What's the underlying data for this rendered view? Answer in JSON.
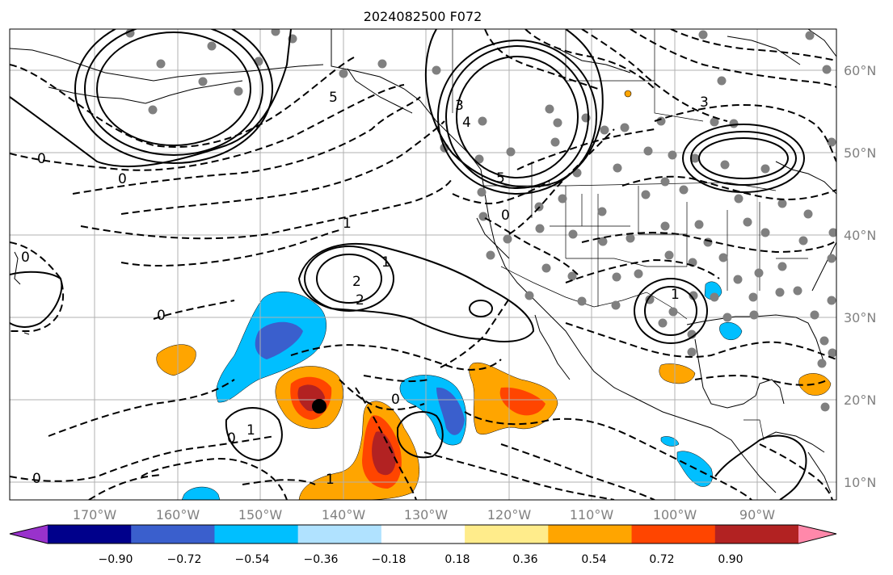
{
  "title": "2024082500 F072",
  "lon_labels": [
    "170°W",
    "160°W",
    "150°W",
    "140°W",
    "130°W",
    "120°W",
    "110°W",
    "100°W",
    "90°W"
  ],
  "lat_labels": [
    "60°N",
    "50°N",
    "40°N",
    "30°N",
    "20°N",
    "10°N"
  ],
  "colorbar": {
    "ticks": [
      "−0.90",
      "−0.72",
      "−0.54",
      "−0.36",
      "−0.18",
      "0.18",
      "0.36",
      "0.54",
      "0.72",
      "0.90"
    ],
    "colors": [
      "#9932cc",
      "#00008b",
      "#3a5fcd",
      "#00bfff",
      "#b0e2ff",
      "#ffffff",
      "#ffec8b",
      "#ffa500",
      "#ff4500",
      "#b22222",
      "#ff88aa"
    ],
    "extend": "both"
  },
  "contour_labels": [
    "0",
    "0",
    "0",
    "0",
    "0",
    "0",
    "0",
    "0",
    "1",
    "1",
    "1",
    "1",
    "1",
    "2",
    "2",
    "3",
    "3",
    "4",
    "5",
    "5"
  ],
  "colors": {
    "grid": "#b0b0b0",
    "coast": "#000000",
    "station": "#808080",
    "center_marker": "#000000"
  }
}
